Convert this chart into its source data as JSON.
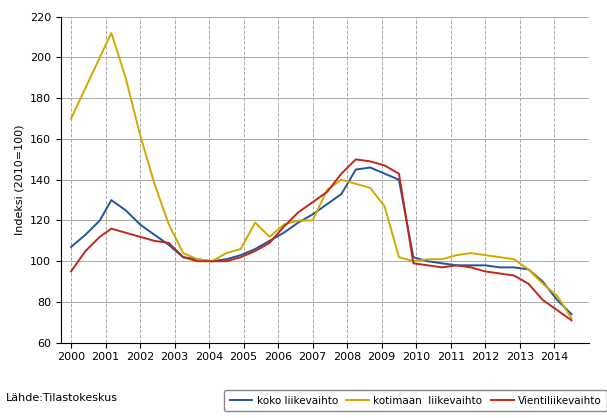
{
  "ylabel": "Indeksi (2010=100)",
  "source": "Lähde:Tilastokeskus",
  "ylim": [
    60,
    220
  ],
  "yticks": [
    60,
    80,
    100,
    120,
    140,
    160,
    180,
    200,
    220
  ],
  "years": [
    2000,
    2000.417,
    2000.833,
    2001.167,
    2001.583,
    2002.0,
    2002.417,
    2002.833,
    2003.25,
    2003.667,
    2004.083,
    2004.5,
    2004.917,
    2005.333,
    2005.75,
    2006.167,
    2006.583,
    2007.0,
    2007.417,
    2007.833,
    2008.25,
    2008.667,
    2009.083,
    2009.5,
    2009.917,
    2010.333,
    2010.75,
    2011.167,
    2011.583,
    2012.0,
    2012.417,
    2012.833,
    2013.25,
    2013.667,
    2014.083,
    2014.5
  ],
  "koko": [
    107,
    113,
    120,
    130,
    125,
    118,
    113,
    108,
    102,
    101,
    100,
    101,
    103,
    106,
    110,
    114,
    119,
    123,
    128,
    133,
    145,
    146,
    143,
    140,
    102,
    100,
    99,
    98,
    98,
    98,
    97,
    97,
    96,
    90,
    81,
    74
  ],
  "kotimaan": [
    170,
    185,
    200,
    212,
    190,
    162,
    138,
    118,
    104,
    101,
    100,
    104,
    106,
    119,
    112,
    118,
    120,
    120,
    135,
    140,
    138,
    136,
    127,
    102,
    100,
    101,
    101,
    103,
    104,
    103,
    102,
    101,
    96,
    89,
    83,
    72
  ],
  "vienti": [
    95,
    105,
    112,
    116,
    114,
    112,
    110,
    109,
    102,
    100,
    100,
    100,
    102,
    105,
    109,
    117,
    124,
    129,
    134,
    143,
    150,
    149,
    147,
    143,
    99,
    98,
    97,
    98,
    97,
    95,
    94,
    93,
    89,
    81,
    76,
    71
  ],
  "koko_color": "#2155a0",
  "kotimaan_color": "#d4a800",
  "vienti_color": "#c0281a",
  "grid_color": "#aaaaaa",
  "background_color": "#ffffff",
  "legend_labels": [
    "koko liikevaihto",
    "kotimaan  liikevaihto",
    "Vientiliikevaihto"
  ],
  "xticks": [
    2000,
    2001,
    2002,
    2003,
    2004,
    2005,
    2006,
    2007,
    2008,
    2009,
    2010,
    2011,
    2012,
    2013,
    2014
  ],
  "xlim": [
    1999.7,
    2015.0
  ]
}
